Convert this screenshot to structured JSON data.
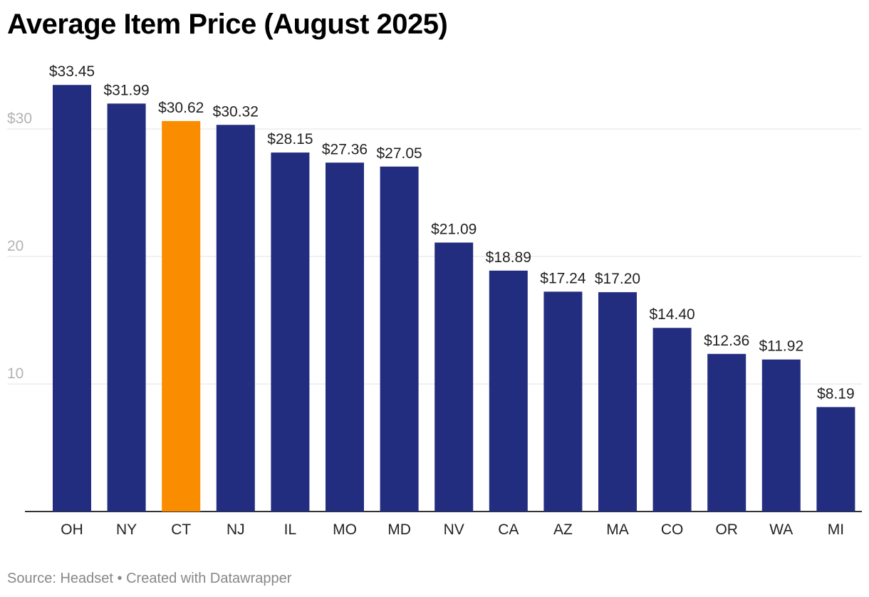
{
  "chart_data": {
    "type": "bar",
    "title": "Average Item Price (August 2025)",
    "categories": [
      "OH",
      "NY",
      "CT",
      "NJ",
      "IL",
      "MO",
      "MD",
      "NV",
      "CA",
      "AZ",
      "MA",
      "CO",
      "OR",
      "WA",
      "MI"
    ],
    "values": [
      33.45,
      31.99,
      30.62,
      30.32,
      28.15,
      27.36,
      27.05,
      21.09,
      18.89,
      17.24,
      17.2,
      14.4,
      12.36,
      11.92,
      8.19
    ],
    "value_labels": [
      "$33.45",
      "$31.99",
      "$30.62",
      "$30.32",
      "$28.15",
      "$27.36",
      "$27.05",
      "$21.09",
      "$18.89",
      "$17.24",
      "$17.20",
      "$14.40",
      "$12.36",
      "$11.92",
      "$8.19"
    ],
    "highlight_category": "CT",
    "bar_color": "#232d80",
    "highlight_color": "#fa8c00",
    "ylim": [
      0,
      35
    ],
    "yticks": [
      10,
      20,
      30
    ],
    "ytick_labels": [
      "10",
      "20",
      "$30"
    ],
    "grid": true,
    "xlabel": "",
    "ylabel": ""
  },
  "footer": {
    "text": "Source: Headset • Created with Datawrapper"
  }
}
